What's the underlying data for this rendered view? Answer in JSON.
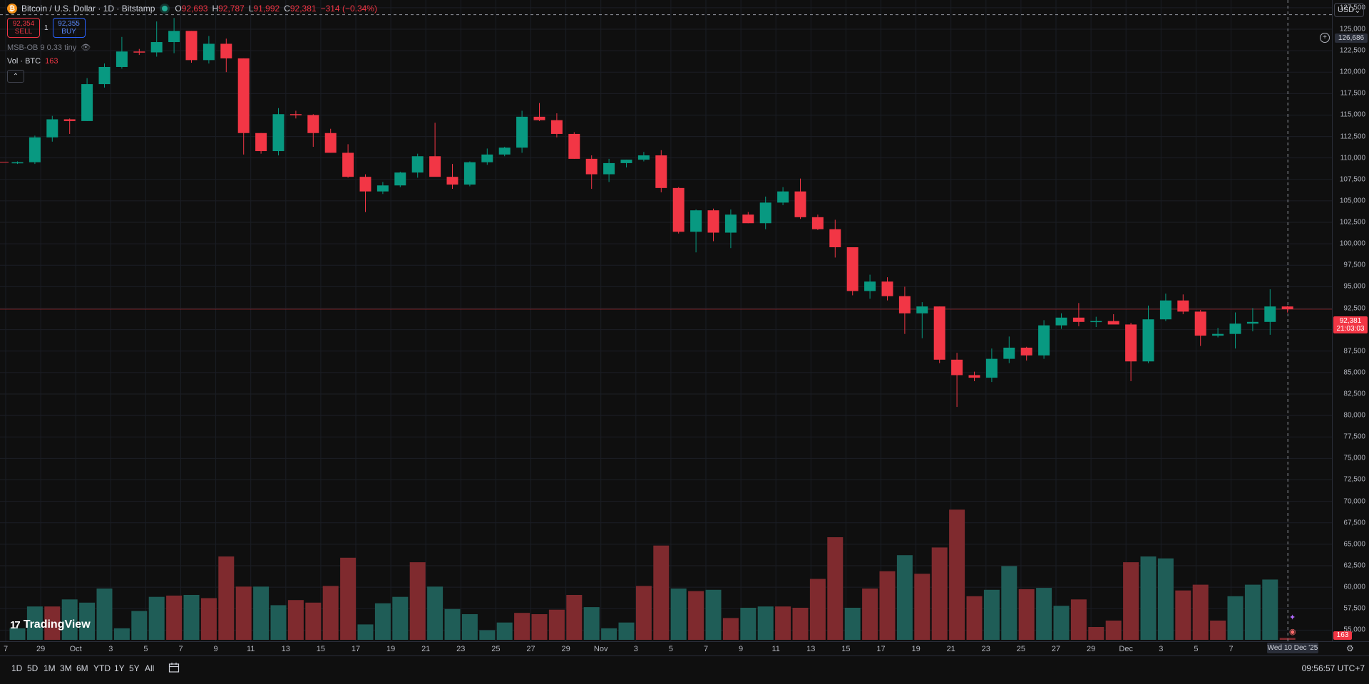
{
  "header": {
    "symbol_title": "Bitcoin / U.S. Dollar · 1D · Bitstamp",
    "coin_icon": "bitcoin-icon",
    "ohlc": [
      {
        "label": "O",
        "value": "92,693"
      },
      {
        "label": "H",
        "value": "92,787"
      },
      {
        "label": "L",
        "value": "91,992"
      },
      {
        "label": "C",
        "value": "92,381"
      }
    ],
    "change": "−314 (−0.34%)",
    "sell_price": "92,354",
    "sell_label": "SELL",
    "spread": "1",
    "buy_price": "92,355",
    "buy_label": "BUY",
    "indicator": "MSB-OB 9 0.33 tiny",
    "volume_label": "Vol · BTC",
    "volume_value": "163",
    "collapse_icon": "chevron-up-icon"
  },
  "currency": "USD",
  "price_axis": {
    "ticks": [
      "127,500",
      "125,000",
      "122,500",
      "120,000",
      "117,500",
      "115,000",
      "112,500",
      "110,000",
      "107,500",
      "105,000",
      "102,500",
      "100,000",
      "97,500",
      "95,000",
      "92,500",
      "90,000",
      "87,500",
      "85,000",
      "82,500",
      "80,000",
      "77,500",
      "75,000",
      "72,500",
      "70,000",
      "67,500",
      "65,000",
      "62,500",
      "60,000",
      "57,500",
      "55,000"
    ],
    "last_price": "92,381",
    "countdown": "21:03:03",
    "crosshair_price": "126,686",
    "volume_tag": "163"
  },
  "time_axis": {
    "labels": [
      "7",
      "29",
      "Oct",
      "3",
      "5",
      "7",
      "9",
      "11",
      "13",
      "15",
      "17",
      "19",
      "21",
      "23",
      "25",
      "27",
      "29",
      "Nov",
      "3",
      "5",
      "7",
      "9",
      "11",
      "13",
      "15",
      "17",
      "19",
      "21",
      "23",
      "25",
      "27",
      "29",
      "Dec",
      "3",
      "5",
      "7"
    ],
    "crosshair_date": "Wed 10 Dec '25"
  },
  "bottom_bar": {
    "ranges": [
      "1D",
      "5D",
      "1M",
      "3M",
      "6M",
      "YTD",
      "1Y",
      "5Y",
      "All"
    ],
    "calendar_icon": "calendar-icon",
    "clock": "09:56:57 UTC+7"
  },
  "branding": "TradingView",
  "colors": {
    "up": "#089981",
    "down": "#f23645",
    "vol_up": "#1f5d57",
    "vol_down": "#7f2a2e",
    "background": "#0f0f0f"
  },
  "chart_data": {
    "type": "candlestick",
    "series": [
      {
        "name": "Bitcoin / U.S. Dollar",
        "ohlc": [
          [
            109400,
            109600,
            109300,
            109500
          ],
          [
            109500,
            112600,
            109300,
            112400
          ],
          [
            112400,
            114900,
            111900,
            114500
          ],
          [
            114500,
            114600,
            112800,
            114300
          ],
          [
            114300,
            119300,
            114300,
            118600
          ],
          [
            118600,
            121000,
            118200,
            120600
          ],
          [
            120600,
            124100,
            120400,
            122400
          ],
          [
            122400,
            122700,
            122000,
            122300
          ],
          [
            122300,
            125900,
            121800,
            123500
          ],
          [
            123500,
            126300,
            122200,
            124800
          ],
          [
            124800,
            124800,
            121100,
            121400
          ],
          [
            121400,
            124200,
            121000,
            123300
          ],
          [
            123300,
            123900,
            120000,
            121600
          ],
          [
            121600,
            121600,
            110400,
            112900
          ],
          [
            112900,
            112900,
            110500,
            110800
          ],
          [
            110800,
            115800,
            110300,
            115100
          ],
          [
            115100,
            115500,
            114600,
            115000
          ],
          [
            115000,
            115100,
            111300,
            112900
          ],
          [
            112900,
            113400,
            110600,
            110600
          ],
          [
            110600,
            111600,
            107700,
            107800
          ],
          [
            107800,
            108100,
            103700,
            106100
          ],
          [
            106100,
            107200,
            105800,
            106800
          ],
          [
            106800,
            108400,
            106600,
            108300
          ],
          [
            108300,
            110500,
            107700,
            110200
          ],
          [
            110200,
            114100,
            107900,
            107800
          ],
          [
            107800,
            109300,
            106400,
            106900
          ],
          [
            106900,
            109600,
            106700,
            109500
          ],
          [
            109500,
            111100,
            109200,
            110400
          ],
          [
            110400,
            111300,
            110200,
            111200
          ],
          [
            111200,
            115500,
            110600,
            114800
          ],
          [
            114800,
            116400,
            114300,
            114400
          ],
          [
            114400,
            115200,
            112400,
            112800
          ],
          [
            112800,
            113000,
            109900,
            109900
          ],
          [
            109900,
            110300,
            106400,
            108100
          ],
          [
            108100,
            109900,
            107200,
            109400
          ],
          [
            109400,
            109800,
            108900,
            109800
          ],
          [
            109800,
            110700,
            109600,
            110300
          ],
          [
            110300,
            110900,
            106000,
            106500
          ],
          [
            106500,
            106600,
            101200,
            101400
          ],
          [
            101400,
            104000,
            99000,
            103900
          ],
          [
            103900,
            104100,
            100300,
            101300
          ],
          [
            101300,
            104000,
            99500,
            103400
          ],
          [
            103400,
            103700,
            102400,
            102400
          ],
          [
            102400,
            105500,
            101700,
            104800
          ],
          [
            104800,
            106600,
            104500,
            106100
          ],
          [
            106100,
            107600,
            102900,
            103100
          ],
          [
            103100,
            103400,
            101600,
            101700
          ],
          [
            101700,
            102800,
            98400,
            99600
          ],
          [
            99600,
            99600,
            94000,
            94500
          ],
          [
            94500,
            96400,
            93600,
            95600
          ],
          [
            95600,
            96100,
            93400,
            93900
          ],
          [
            93900,
            95000,
            89500,
            91900
          ],
          [
            91900,
            93200,
            89000,
            92700
          ],
          [
            92700,
            92700,
            86100,
            86500
          ],
          [
            86500,
            87300,
            81000,
            84700
          ],
          [
            84700,
            85100,
            84000,
            84400
          ],
          [
            84400,
            87800,
            83900,
            86600
          ],
          [
            86600,
            89200,
            86100,
            87900
          ],
          [
            87900,
            88000,
            86400,
            87000
          ],
          [
            87000,
            91100,
            86600,
            90500
          ],
          [
            90500,
            91900,
            90100,
            91400
          ],
          [
            91400,
            93100,
            90400,
            90900
          ],
          [
            90900,
            91500,
            90300,
            91000
          ],
          [
            91000,
            91800,
            90700,
            90600
          ],
          [
            90600,
            90800,
            84000,
            86300
          ],
          [
            86300,
            92800,
            86100,
            91200
          ],
          [
            91200,
            94200,
            91000,
            93400
          ],
          [
            93400,
            94100,
            91800,
            92100
          ],
          [
            92100,
            92300,
            88100,
            89300
          ],
          [
            89300,
            90200,
            89100,
            89500
          ],
          [
            89500,
            92000,
            87800,
            90700
          ],
          [
            90700,
            92500,
            89800,
            90900
          ],
          [
            90900,
            94700,
            89400,
            92700
          ],
          [
            92700,
            92787,
            91992,
            92381
          ]
        ]
      },
      {
        "name": "Vol · BTC",
        "values": [
          {
            "v": 0.18,
            "up": true
          },
          {
            "v": 0.52,
            "up": true
          },
          {
            "v": 0.52,
            "up": false
          },
          {
            "v": 0.63,
            "up": true
          },
          {
            "v": 0.58,
            "up": true
          },
          {
            "v": 0.8,
            "up": true
          },
          {
            "v": 0.18,
            "up": true
          },
          {
            "v": 0.45,
            "up": true
          },
          {
            "v": 0.67,
            "up": true
          },
          {
            "v": 0.69,
            "up": false
          },
          {
            "v": 0.7,
            "up": true
          },
          {
            "v": 0.65,
            "up": false
          },
          {
            "v": 1.3,
            "up": false
          },
          {
            "v": 0.83,
            "up": false
          },
          {
            "v": 0.83,
            "up": true
          },
          {
            "v": 0.54,
            "up": true
          },
          {
            "v": 0.62,
            "up": false
          },
          {
            "v": 0.58,
            "up": false
          },
          {
            "v": 0.84,
            "up": false
          },
          {
            "v": 1.28,
            "up": false
          },
          {
            "v": 0.24,
            "up": true
          },
          {
            "v": 0.57,
            "up": true
          },
          {
            "v": 0.67,
            "up": true
          },
          {
            "v": 1.21,
            "up": false
          },
          {
            "v": 0.83,
            "up": true
          },
          {
            "v": 0.48,
            "up": true
          },
          {
            "v": 0.4,
            "up": true
          },
          {
            "v": 0.15,
            "up": true
          },
          {
            "v": 0.27,
            "up": true
          },
          {
            "v": 0.42,
            "up": false
          },
          {
            "v": 0.4,
            "up": false
          },
          {
            "v": 0.47,
            "up": false
          },
          {
            "v": 0.7,
            "up": false
          },
          {
            "v": 0.51,
            "up": true
          },
          {
            "v": 0.18,
            "up": true
          },
          {
            "v": 0.27,
            "up": true
          },
          {
            "v": 0.84,
            "up": false
          },
          {
            "v": 1.47,
            "up": false
          },
          {
            "v": 0.8,
            "up": true
          },
          {
            "v": 0.76,
            "up": false
          },
          {
            "v": 0.78,
            "up": true
          },
          {
            "v": 0.34,
            "up": false
          },
          {
            "v": 0.5,
            "up": true
          },
          {
            "v": 0.52,
            "up": true
          },
          {
            "v": 0.52,
            "up": false
          },
          {
            "v": 0.5,
            "up": false
          },
          {
            "v": 0.95,
            "up": false
          },
          {
            "v": 1.6,
            "up": false
          },
          {
            "v": 0.5,
            "up": true
          },
          {
            "v": 0.8,
            "up": false
          },
          {
            "v": 1.07,
            "up": false
          },
          {
            "v": 1.32,
            "up": true
          },
          {
            "v": 1.03,
            "up": false
          },
          {
            "v": 1.44,
            "up": false
          },
          {
            "v": 2.03,
            "up": false
          },
          {
            "v": 0.68,
            "up": false
          },
          {
            "v": 0.78,
            "up": true
          },
          {
            "v": 1.15,
            "up": true
          },
          {
            "v": 0.79,
            "up": false
          },
          {
            "v": 0.81,
            "up": true
          },
          {
            "v": 0.53,
            "up": true
          },
          {
            "v": 0.63,
            "up": false
          },
          {
            "v": 0.2,
            "up": false
          },
          {
            "v": 0.3,
            "up": false
          },
          {
            "v": 1.21,
            "up": false
          },
          {
            "v": 1.3,
            "up": true
          },
          {
            "v": 1.27,
            "up": true
          },
          {
            "v": 0.77,
            "up": false
          },
          {
            "v": 0.86,
            "up": false
          },
          {
            "v": 0.3,
            "up": false
          },
          {
            "v": 0.68,
            "up": true
          },
          {
            "v": 0.86,
            "up": true
          },
          {
            "v": 0.94,
            "up": true
          },
          {
            "v": 0.03,
            "up": false
          }
        ]
      }
    ],
    "y_range": [
      53700,
      128400
    ]
  }
}
